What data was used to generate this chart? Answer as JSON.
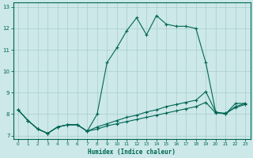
{
  "xlabel": "Humidex (Indice chaleur)",
  "background_color": "#cce8e8",
  "grid_color": "#aacccc",
  "line_color": "#006655",
  "spine_color": "#006655",
  "xlim": [
    -0.5,
    23.5
  ],
  "ylim": [
    6.85,
    13.2
  ],
  "yticks": [
    7,
    8,
    9,
    10,
    11,
    12,
    13
  ],
  "xticks": [
    0,
    1,
    2,
    3,
    4,
    5,
    6,
    7,
    8,
    9,
    10,
    11,
    12,
    13,
    14,
    15,
    16,
    17,
    18,
    19,
    20,
    21,
    22,
    23
  ],
  "line1_y": [
    8.2,
    7.7,
    7.3,
    7.1,
    7.4,
    7.5,
    7.5,
    7.2,
    8.0,
    10.4,
    11.1,
    11.9,
    12.5,
    11.7,
    12.6,
    12.2,
    12.1,
    12.1,
    12.0,
    10.4,
    8.1,
    8.0,
    8.5,
    8.5
  ],
  "line2_y": [
    8.2,
    7.7,
    7.3,
    7.1,
    7.4,
    7.5,
    7.5,
    7.2,
    7.4,
    7.55,
    7.7,
    7.85,
    7.95,
    8.1,
    8.2,
    8.35,
    8.45,
    8.55,
    8.65,
    9.05,
    8.1,
    8.0,
    8.35,
    8.5
  ],
  "line3_y": [
    8.2,
    7.7,
    7.3,
    7.1,
    7.4,
    7.5,
    7.5,
    7.2,
    7.3,
    7.45,
    7.55,
    7.65,
    7.75,
    7.85,
    7.95,
    8.05,
    8.15,
    8.25,
    8.35,
    8.55,
    8.05,
    8.05,
    8.3,
    8.45
  ]
}
